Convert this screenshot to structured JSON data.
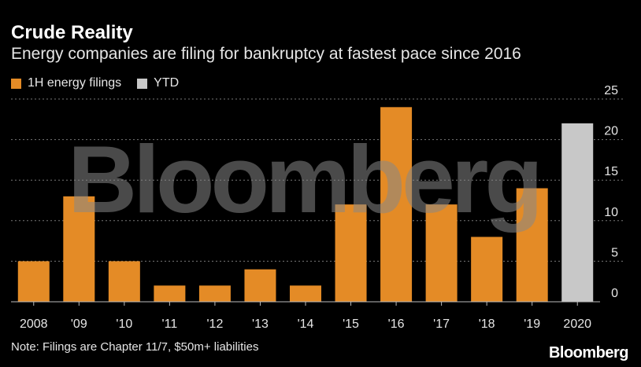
{
  "title": "Crude Reality",
  "subtitle": "Energy companies are filing for bankruptcy at fastest pace since 2016",
  "note": "Note: Filings are Chapter 11/7, $50m+ liabilities",
  "brand": "Bloomberg",
  "watermark": "Bloomberg",
  "chart_data": {
    "type": "bar",
    "categories": [
      "2008",
      "'09",
      "'10",
      "'11",
      "'12",
      "'13",
      "'14",
      "'15",
      "'16",
      "'17",
      "'18",
      "'19",
      "2020"
    ],
    "series": [
      {
        "name": "1H energy filings",
        "values": [
          5,
          13,
          5,
          2,
          2,
          4,
          2,
          12,
          24,
          12,
          8,
          14,
          null
        ],
        "color": "#e48b26"
      },
      {
        "name": "YTD",
        "values": [
          null,
          null,
          null,
          null,
          null,
          null,
          null,
          null,
          null,
          null,
          null,
          null,
          22
        ],
        "color": "#c8c8c8"
      }
    ],
    "ylim": [
      0,
      25
    ],
    "yticks": [
      "0",
      "5",
      "10",
      "15",
      "20",
      "25"
    ],
    "ytick_values": [
      0,
      5,
      10,
      15,
      20,
      25
    ],
    "y_axis_side": "right",
    "grid": "dotted",
    "legend_position": "top-left"
  }
}
